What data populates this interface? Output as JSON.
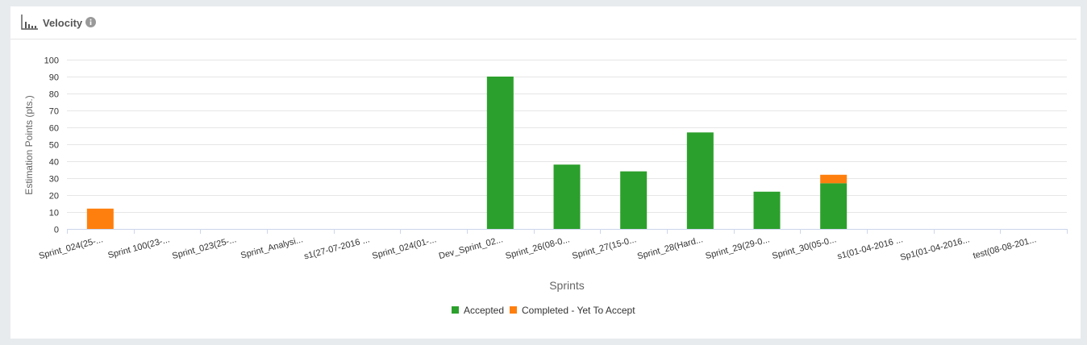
{
  "header": {
    "title": "Velocity",
    "icon": "bar-chart-icon",
    "info_icon": "info-icon"
  },
  "colors": {
    "accepted": "#2ca02c",
    "pending": "#ff7f0e"
  },
  "legend": {
    "items": [
      {
        "label": "Accepted",
        "color": "#2ca02c"
      },
      {
        "label": "Completed - Yet To Accept",
        "color": "#ff7f0e"
      }
    ]
  },
  "chart_data": {
    "type": "bar",
    "stacked": true,
    "xlabel": "Sprints",
    "ylabel": "Estimation Points (pts.)",
    "ylim": [
      0,
      100
    ],
    "yticks": [
      0,
      10,
      20,
      30,
      40,
      50,
      60,
      70,
      80,
      90,
      100
    ],
    "grid": true,
    "legend_position": "bottom-center",
    "categories": [
      "Sprint_024(25-...",
      "Sprint 100(23-...",
      "Sprint_023(25-...",
      "Sprint_Analysi...",
      "s1(27-07-2016 ...",
      "Sprint_024(01-...",
      "Dev_Sprint_02...",
      "Sprint_26(08-0...",
      "Sprint_27(15-0...",
      "Sprint_28(Hard...",
      "Sprint_29(29-0...",
      "Sprint_30(05-0...",
      "s1(01-04-2016 ...",
      "Sp1(01-04-2016...",
      "test(08-08-201..."
    ],
    "series": [
      {
        "name": "Accepted",
        "values": [
          0,
          0,
          0,
          0,
          0,
          0,
          90,
          38,
          34,
          57,
          22,
          27,
          0,
          0,
          0
        ]
      },
      {
        "name": "Completed - Yet To Accept",
        "values": [
          12,
          0,
          0,
          0,
          0,
          0,
          0,
          0,
          0,
          0,
          0,
          5,
          0,
          0,
          0
        ]
      }
    ]
  }
}
